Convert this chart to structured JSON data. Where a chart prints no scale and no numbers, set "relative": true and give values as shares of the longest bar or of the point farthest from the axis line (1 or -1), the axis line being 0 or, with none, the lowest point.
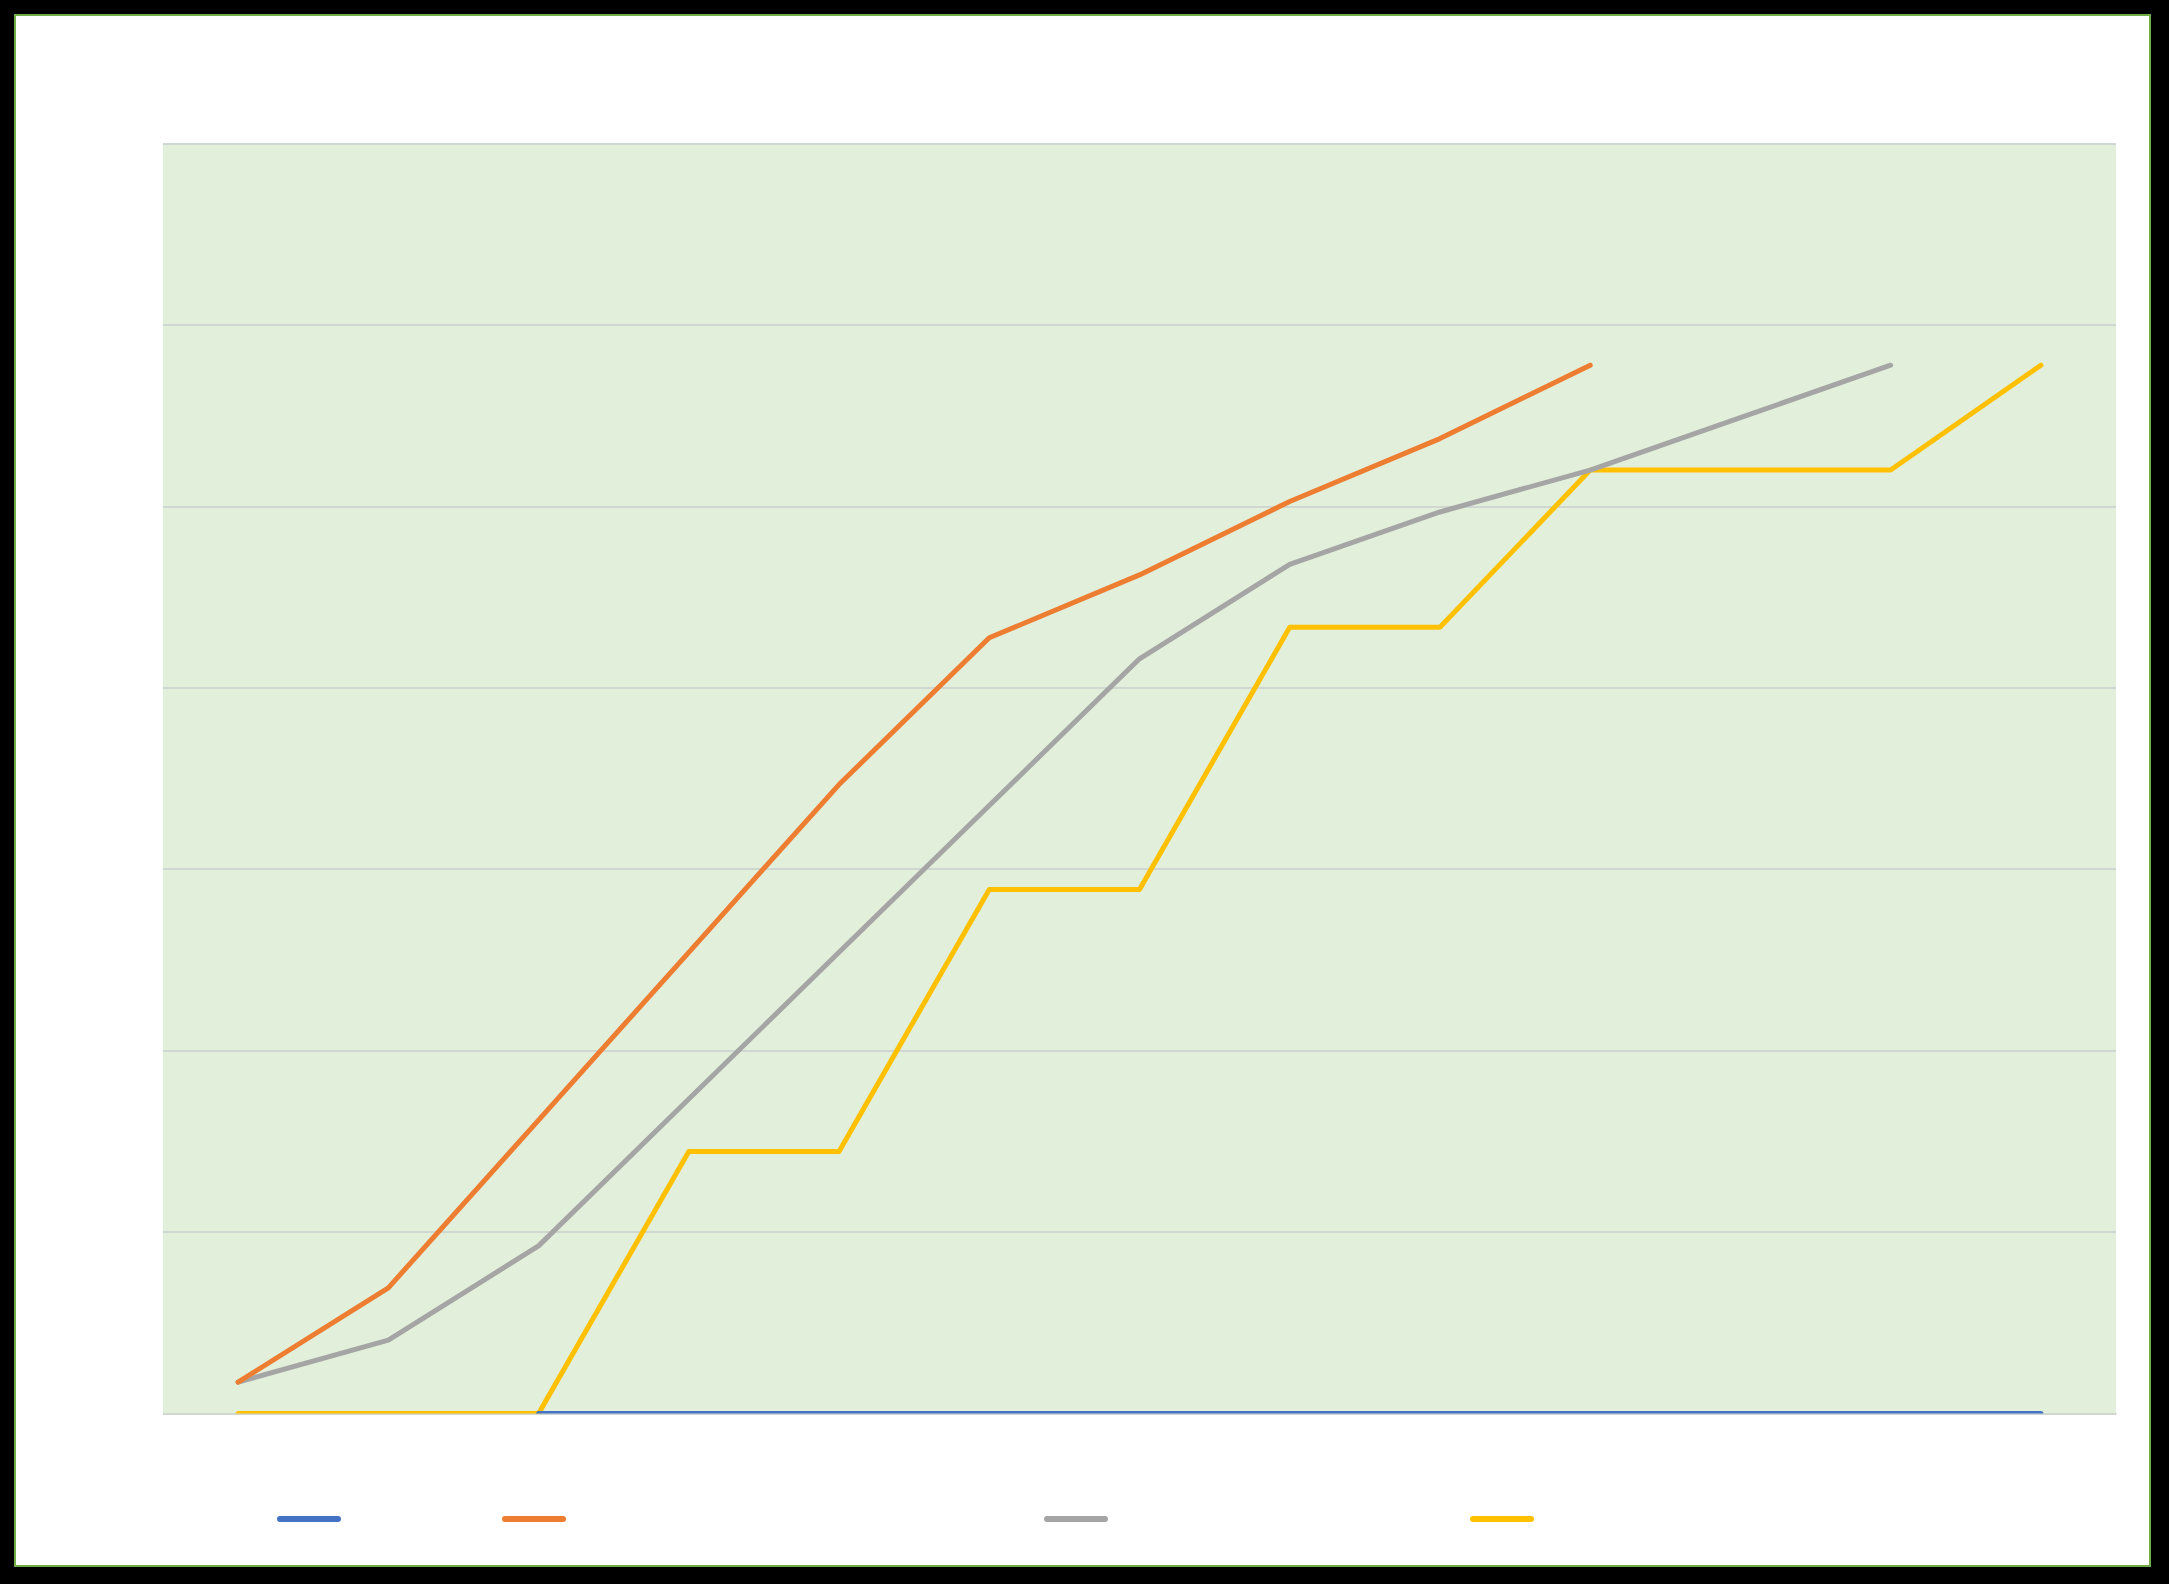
{
  "chart_data": {
    "type": "line",
    "relative": true,
    "categories": [
      null,
      null,
      null,
      null,
      null,
      null,
      null,
      null,
      null,
      null,
      null,
      null,
      null
    ],
    "series": [
      {
        "color": "#4472c4",
        "values": [
          null,
          null,
          0,
          0,
          0,
          0,
          0,
          0,
          0,
          0,
          0,
          0,
          0
        ]
      },
      {
        "color": "#ed7d31",
        "values": [
          0.03,
          0.12,
          0.28,
          0.44,
          0.6,
          0.74,
          0.8,
          0.87,
          0.93,
          1,
          null,
          null,
          null
        ]
      },
      {
        "color": "#a5a5a5",
        "values": [
          0.03,
          0.07,
          0.16,
          0.3,
          0.44,
          0.58,
          0.72,
          0.81,
          0.86,
          0.9,
          0.95,
          1,
          null
        ]
      },
      {
        "color": "#ffc000",
        "values": [
          0,
          0,
          0,
          0.25,
          0.25,
          0.5,
          0.5,
          0.75,
          0.75,
          0.9,
          0.9,
          0.9,
          1
        ]
      }
    ],
    "grid": "y",
    "marker": "none",
    "line_style": "solid"
  }
}
